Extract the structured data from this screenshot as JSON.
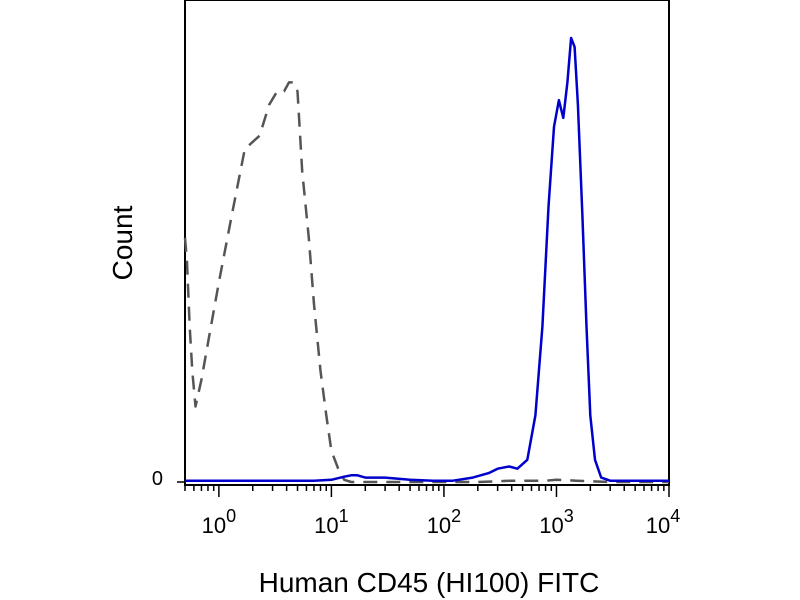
{
  "chart_data": {
    "type": "line",
    "xscale": "log",
    "xlim": [
      0.5,
      10000
    ],
    "ylim": [
      0,
      100
    ],
    "xlabel": "Human CD45 (HI100) FITC",
    "ylabel": "Count",
    "y_ticks": [
      {
        "value": 0,
        "label": "0"
      }
    ],
    "x_ticks": [
      {
        "value": 1,
        "base": "10",
        "exp": "0"
      },
      {
        "value": 10,
        "base": "10",
        "exp": "1"
      },
      {
        "value": 100,
        "base": "10",
        "exp": "2"
      },
      {
        "value": 1000,
        "base": "10",
        "exp": "3"
      },
      {
        "value": 10000,
        "base": "10",
        "exp": "4"
      }
    ],
    "legend": "none",
    "grid": false,
    "series": [
      {
        "style": "dashed",
        "color": "#555555",
        "x": [
          0.5,
          0.52,
          0.55,
          0.58,
          0.62,
          0.7,
          0.85,
          1.0,
          1.3,
          1.7,
          2.3,
          2.8,
          3.3,
          3.8,
          4.2,
          4.6,
          5.0,
          5.5,
          6.3,
          7.0,
          8.0,
          9.0,
          10.0,
          11.5,
          13.0,
          15.0,
          20.0,
          30.0,
          50.0,
          100.0,
          200.0,
          400.0,
          800.0,
          1000.0,
          1500.0,
          3000.0,
          10000.0
        ],
        "y": [
          55,
          50,
          35,
          25,
          17,
          23,
          35,
          45,
          60,
          75,
          78,
          85,
          88,
          88,
          90,
          90,
          88,
          70,
          55,
          40,
          25,
          15,
          7,
          3,
          0.5,
          0,
          0,
          0,
          0,
          0,
          0,
          0.3,
          0.3,
          0.5,
          0.3,
          0,
          0
        ]
      },
      {
        "style": "solid",
        "color": "#0000cc",
        "x": [
          0.5,
          1.0,
          3.0,
          7.0,
          10.0,
          13.0,
          15.0,
          17.0,
          20.0,
          30.0,
          50.0,
          80.0,
          120.0,
          180.0,
          250.0,
          300.0,
          380.0,
          450.0,
          550.0,
          650.0,
          750.0,
          850.0,
          950.0,
          1050.0,
          1150.0,
          1250.0,
          1350.0,
          1450.0,
          1550.0,
          1700.0,
          1850.0,
          2000.0,
          2200.0,
          2500.0,
          3000.0,
          5000.0,
          10000.0
        ],
        "y": [
          0.3,
          0.3,
          0.3,
          0.3,
          0.5,
          1.2,
          1.5,
          1.5,
          1.0,
          1.0,
          0.5,
          0.3,
          0.3,
          1.0,
          2.0,
          3.0,
          3.5,
          3.0,
          5.0,
          15.0,
          35.0,
          62.0,
          80.0,
          86.0,
          82.0,
          90.0,
          100.0,
          98.0,
          85.0,
          60.0,
          35.0,
          15.0,
          5.0,
          1.0,
          0.3,
          0.3,
          0.3
        ]
      }
    ]
  }
}
